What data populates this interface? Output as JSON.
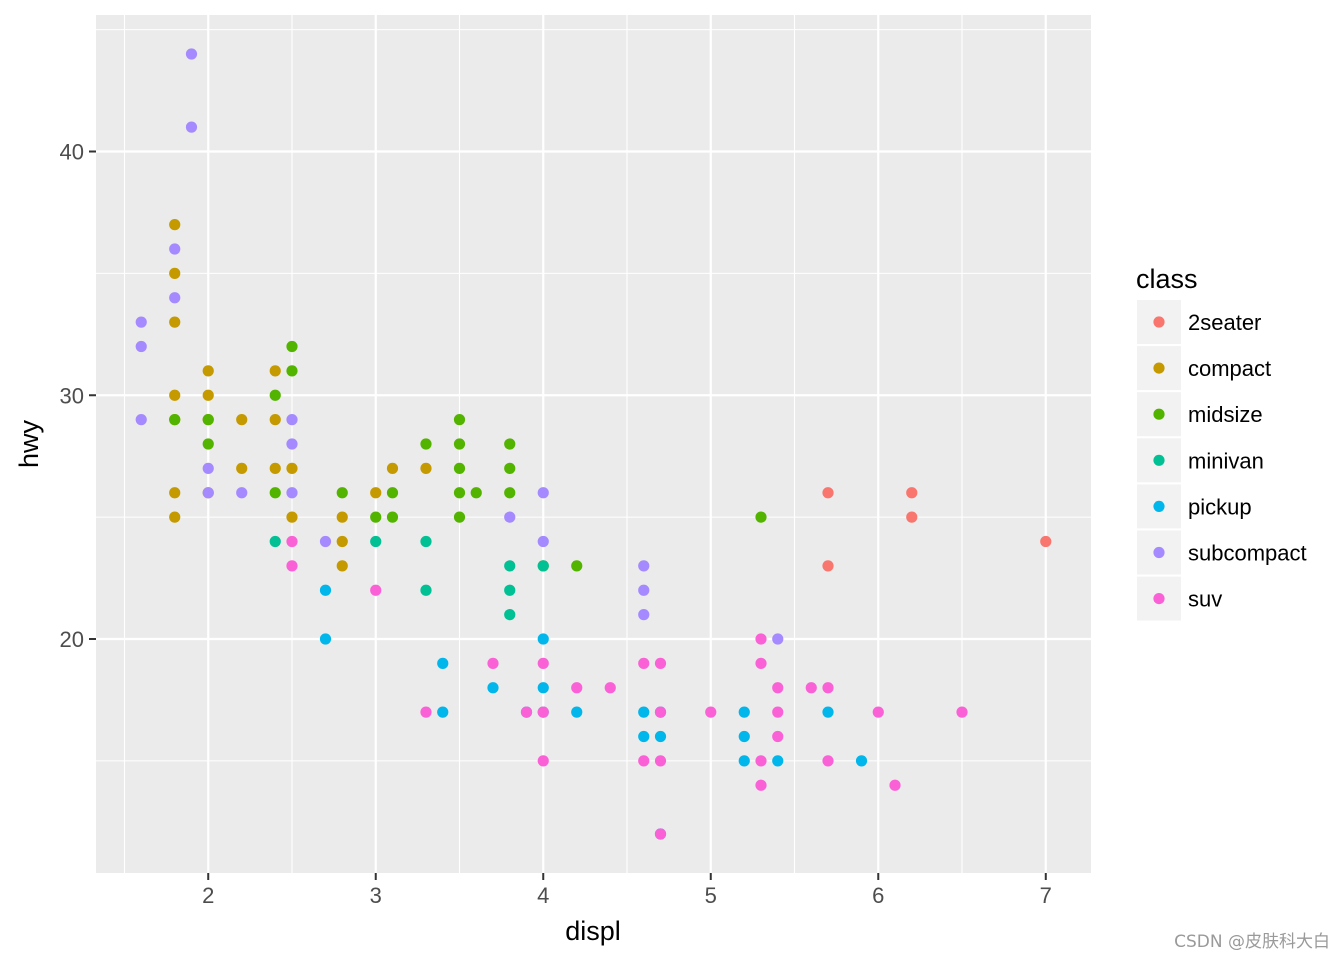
{
  "chart_data": {
    "type": "scatter",
    "xlabel": "displ",
    "ylabel": "hwy",
    "xlim": [
      1.33,
      7.27
    ],
    "ylim": [
      10.4,
      45.6
    ],
    "x_ticks": [
      2,
      3,
      4,
      5,
      6,
      7
    ],
    "y_ticks": [
      20,
      30,
      40
    ],
    "x_tick_labels": [
      "2",
      "3",
      "4",
      "5",
      "6",
      "7"
    ],
    "y_tick_labels": [
      "20",
      "30",
      "40"
    ],
    "grid": true,
    "legend_title": "class",
    "legend_position": "right",
    "series": [
      {
        "name": "2seater",
        "color": "#F8766D",
        "points": [
          [
            5.7,
            26
          ],
          [
            5.7,
            23
          ],
          [
            6.2,
            26
          ],
          [
            6.2,
            25
          ],
          [
            7.0,
            24
          ]
        ]
      },
      {
        "name": "compact",
        "color": "#C49A00",
        "points": [
          [
            1.8,
            37
          ],
          [
            1.8,
            35
          ],
          [
            1.8,
            33
          ],
          [
            1.8,
            30
          ],
          [
            1.8,
            29
          ],
          [
            1.8,
            26
          ],
          [
            1.8,
            25
          ],
          [
            2.0,
            31
          ],
          [
            2.0,
            30
          ],
          [
            2.0,
            29
          ],
          [
            2.0,
            26
          ],
          [
            2.2,
            29
          ],
          [
            2.2,
            27
          ],
          [
            2.4,
            31
          ],
          [
            2.4,
            29
          ],
          [
            2.4,
            27
          ],
          [
            2.5,
            27
          ],
          [
            2.5,
            25
          ],
          [
            2.8,
            25
          ],
          [
            2.8,
            24
          ],
          [
            2.8,
            23
          ],
          [
            3.0,
            26
          ],
          [
            3.1,
            27
          ],
          [
            3.3,
            27
          ]
        ]
      },
      {
        "name": "midsize",
        "color": "#53B400",
        "points": [
          [
            1.8,
            29
          ],
          [
            2.0,
            29
          ],
          [
            2.0,
            28
          ],
          [
            2.4,
            30
          ],
          [
            2.4,
            26
          ],
          [
            2.5,
            32
          ],
          [
            2.5,
            31
          ],
          [
            2.8,
            26
          ],
          [
            3.0,
            25
          ],
          [
            3.1,
            26
          ],
          [
            3.1,
            25
          ],
          [
            3.3,
            28
          ],
          [
            3.5,
            29
          ],
          [
            3.5,
            28
          ],
          [
            3.5,
            27
          ],
          [
            3.5,
            26
          ],
          [
            3.5,
            25
          ],
          [
            3.6,
            26
          ],
          [
            3.8,
            28
          ],
          [
            3.8,
            27
          ],
          [
            3.8,
            26
          ],
          [
            4.0,
            23
          ],
          [
            4.2,
            23
          ],
          [
            5.3,
            25
          ]
        ]
      },
      {
        "name": "minivan",
        "color": "#00C094",
        "points": [
          [
            2.4,
            24
          ],
          [
            3.0,
            24
          ],
          [
            3.3,
            24
          ],
          [
            3.3,
            22
          ],
          [
            3.8,
            23
          ],
          [
            3.8,
            22
          ],
          [
            3.8,
            21
          ],
          [
            4.0,
            23
          ]
        ]
      },
      {
        "name": "pickup",
        "color": "#00B6EB",
        "points": [
          [
            2.7,
            22
          ],
          [
            2.7,
            20
          ],
          [
            3.4,
            19
          ],
          [
            3.4,
            17
          ],
          [
            3.7,
            18
          ],
          [
            3.9,
            17
          ],
          [
            4.0,
            20
          ],
          [
            4.0,
            18
          ],
          [
            4.0,
            17
          ],
          [
            4.2,
            17
          ],
          [
            4.6,
            17
          ],
          [
            4.6,
            16
          ],
          [
            4.7,
            17
          ],
          [
            4.7,
            16
          ],
          [
            4.7,
            12
          ],
          [
            5.2,
            17
          ],
          [
            5.2,
            16
          ],
          [
            5.2,
            15
          ],
          [
            5.4,
            15
          ],
          [
            5.7,
            17
          ],
          [
            5.9,
            15
          ]
        ]
      },
      {
        "name": "subcompact",
        "color": "#A58AFF",
        "points": [
          [
            1.6,
            33
          ],
          [
            1.6,
            32
          ],
          [
            1.6,
            29
          ],
          [
            1.8,
            36
          ],
          [
            1.8,
            34
          ],
          [
            1.9,
            44
          ],
          [
            1.9,
            41
          ],
          [
            2.0,
            27
          ],
          [
            2.0,
            26
          ],
          [
            2.2,
            26
          ],
          [
            2.5,
            29
          ],
          [
            2.5,
            28
          ],
          [
            2.5,
            26
          ],
          [
            2.7,
            24
          ],
          [
            3.8,
            25
          ],
          [
            4.0,
            26
          ],
          [
            4.0,
            24
          ],
          [
            4.6,
            23
          ],
          [
            4.6,
            22
          ],
          [
            4.6,
            21
          ],
          [
            5.4,
            20
          ]
        ]
      },
      {
        "name": "suv",
        "color": "#FB61D7",
        "points": [
          [
            2.5,
            24
          ],
          [
            2.5,
            23
          ],
          [
            3.0,
            22
          ],
          [
            3.3,
            17
          ],
          [
            3.7,
            19
          ],
          [
            3.9,
            17
          ],
          [
            4.0,
            19
          ],
          [
            4.0,
            17
          ],
          [
            4.0,
            15
          ],
          [
            4.2,
            18
          ],
          [
            4.4,
            18
          ],
          [
            4.6,
            19
          ],
          [
            4.6,
            15
          ],
          [
            4.7,
            19
          ],
          [
            4.7,
            17
          ],
          [
            4.7,
            15
          ],
          [
            4.7,
            12
          ],
          [
            5.0,
            17
          ],
          [
            5.3,
            20
          ],
          [
            5.3,
            19
          ],
          [
            5.3,
            15
          ],
          [
            5.3,
            14
          ],
          [
            5.4,
            18
          ],
          [
            5.4,
            17
          ],
          [
            5.4,
            16
          ],
          [
            5.6,
            18
          ],
          [
            5.7,
            18
          ],
          [
            5.7,
            15
          ],
          [
            6.0,
            17
          ],
          [
            6.1,
            14
          ],
          [
            6.5,
            17
          ]
        ]
      }
    ]
  },
  "watermark": "CSDN @皮肤科大白"
}
